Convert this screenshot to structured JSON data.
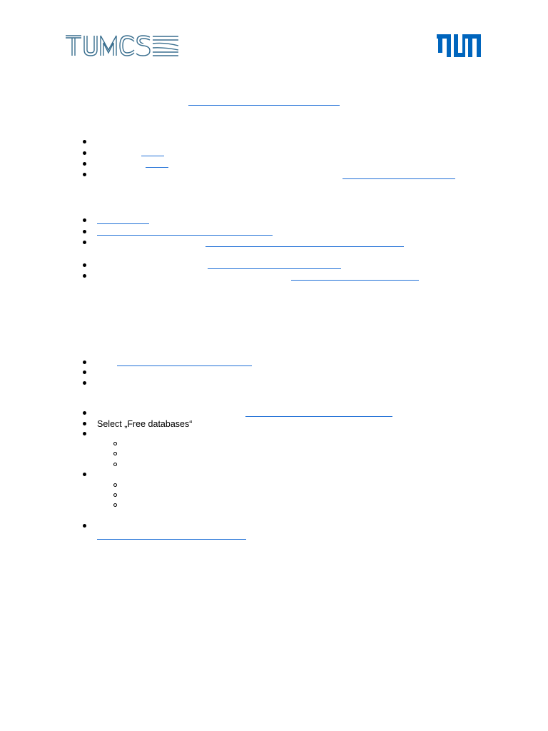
{
  "header": {
    "left_logo_icon": "tumcs-logo-icon",
    "right_logo_icon": "tum-logo-icon",
    "accent_color": "#0065bd",
    "link_color": "#1f6fd6"
  },
  "section_4": {
    "item_2": {
      "text": "Select „Free databases“"
    }
  }
}
